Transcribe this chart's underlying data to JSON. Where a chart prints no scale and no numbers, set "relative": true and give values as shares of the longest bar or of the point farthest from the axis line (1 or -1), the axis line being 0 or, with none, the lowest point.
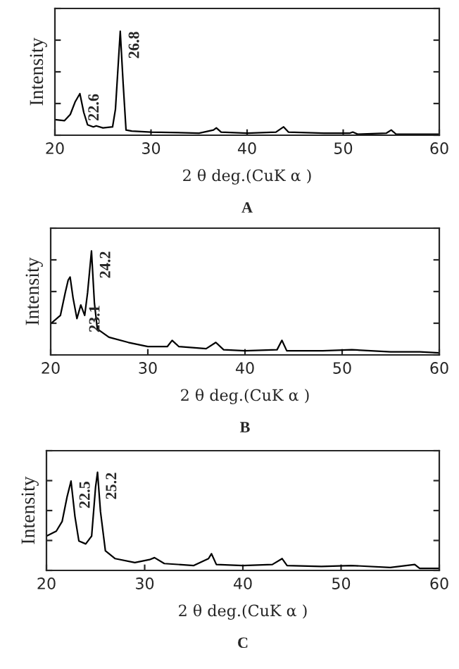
{
  "chart_data": [
    {
      "type": "line",
      "relative": true,
      "xlabel": "2 θ deg.(CuK α )",
      "ylabel": "Intensity",
      "xlim": [
        20,
        60
      ],
      "xticks": [
        20,
        30,
        40,
        50,
        60
      ],
      "tick_labels": "x",
      "series": [
        {
          "color": "#000000",
          "x": [
            20,
            21,
            21.6,
            22.1,
            22.6,
            23.0,
            23.4,
            24,
            24.3,
            25,
            26,
            26.3,
            26.6,
            26.8,
            27.1,
            27.4,
            28,
            30,
            35,
            36.5,
            36.8,
            37.3,
            40,
            43,
            43.8,
            44.3,
            48,
            50.7,
            51,
            51.5,
            54.5,
            55,
            55.5,
            58,
            60
          ],
          "values": [
            0.15,
            0.14,
            0.2,
            0.32,
            0.4,
            0.22,
            0.1,
            0.08,
            0.09,
            0.07,
            0.08,
            0.25,
            0.7,
            1.0,
            0.5,
            0.05,
            0.04,
            0.03,
            0.02,
            0.05,
            0.07,
            0.03,
            0.02,
            0.03,
            0.08,
            0.03,
            0.02,
            0.02,
            0.03,
            0.01,
            0.02,
            0.05,
            0.01,
            0.01,
            0.01
          ]
        }
      ],
      "annotations": [
        {
          "text": "22.6",
          "x": 22.6,
          "y": 0.4
        },
        {
          "text": "26.8",
          "x": 26.8,
          "y": 1.0
        },
        "A"
      ]
    },
    {
      "type": "line",
      "relative": true,
      "xlabel": "2 θ deg.(CuK α )",
      "ylabel": "Intensity",
      "xlim": [
        20,
        60
      ],
      "xticks": [
        20,
        30,
        40,
        50,
        60
      ],
      "tick_labels": "x",
      "series": [
        {
          "color": "#000000",
          "x": [
            20,
            21,
            21.5,
            21.8,
            22.0,
            22.3,
            22.7,
            23.1,
            23.5,
            23.8,
            24.2,
            24.5,
            24.8,
            26,
            28,
            30,
            32,
            32.5,
            33.2,
            36,
            37,
            37.8,
            40,
            43.3,
            43.8,
            44.3,
            48,
            51,
            55,
            58,
            60
          ],
          "values": [
            0.3,
            0.38,
            0.6,
            0.72,
            0.75,
            0.55,
            0.35,
            0.48,
            0.38,
            0.6,
            1.0,
            0.5,
            0.25,
            0.17,
            0.12,
            0.08,
            0.08,
            0.14,
            0.08,
            0.06,
            0.12,
            0.05,
            0.04,
            0.05,
            0.14,
            0.04,
            0.04,
            0.05,
            0.03,
            0.03,
            0.02
          ]
        }
      ],
      "annotations": [
        {
          "text": "23.1",
          "x": 23.1,
          "y": 0.48
        },
        {
          "text": "24.2",
          "x": 24.2,
          "y": 1.0
        },
        "B"
      ]
    },
    {
      "type": "line",
      "relative": true,
      "xlabel": "2 θ deg.(CuK α )",
      "ylabel": "Intensity",
      "xlim": [
        20,
        60
      ],
      "xticks": [
        20,
        30,
        40,
        50,
        60
      ],
      "tick_labels": "x",
      "series": [
        {
          "color": "#000000",
          "x": [
            20,
            21,
            21.6,
            22.1,
            22.5,
            22.9,
            23.3,
            24,
            24.6,
            25.0,
            25.2,
            25.5,
            26,
            27,
            29,
            30.5,
            31,
            32,
            35,
            36.5,
            36.8,
            37.3,
            40,
            43,
            44,
            44.5,
            48,
            51,
            55,
            57.5,
            58,
            60
          ],
          "values": [
            0.35,
            0.4,
            0.5,
            0.75,
            0.91,
            0.55,
            0.3,
            0.27,
            0.35,
            0.85,
            1.0,
            0.6,
            0.2,
            0.12,
            0.08,
            0.11,
            0.13,
            0.07,
            0.05,
            0.12,
            0.17,
            0.06,
            0.05,
            0.06,
            0.12,
            0.05,
            0.04,
            0.05,
            0.03,
            0.06,
            0.02,
            0.02
          ]
        }
      ],
      "annotations": [
        {
          "text": "22.5",
          "x": 22.5,
          "y": 0.91
        },
        {
          "text": "25.2",
          "x": 25.2,
          "y": 1.0
        },
        "C"
      ]
    }
  ]
}
